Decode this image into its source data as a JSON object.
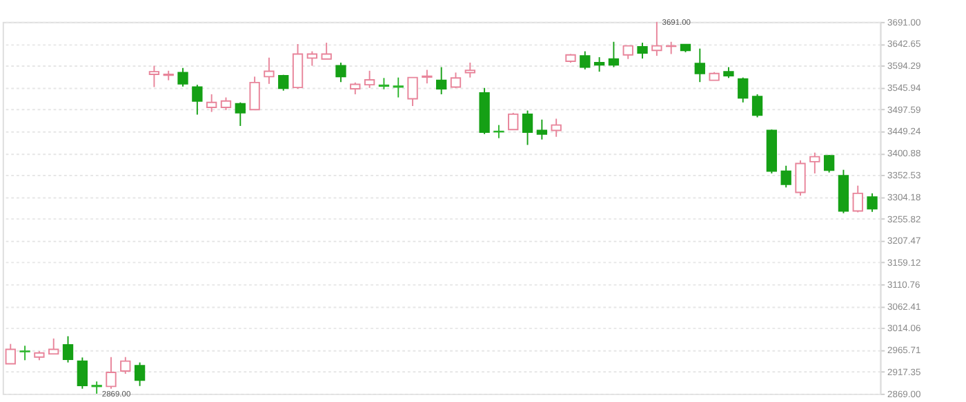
{
  "chart_data": {
    "type": "candlestick",
    "categories": [
      null,
      null,
      null,
      null,
      null,
      null,
      null,
      null,
      null,
      null,
      null,
      null,
      null,
      null,
      null,
      null,
      null,
      null,
      null,
      null,
      null,
      null,
      null,
      null,
      null,
      null,
      null,
      null,
      null,
      null,
      null,
      null,
      null,
      null,
      null,
      null,
      null,
      null,
      null,
      null,
      null,
      null,
      null,
      null,
      null,
      null,
      null,
      null,
      null,
      null,
      null,
      null,
      null,
      null,
      null,
      null,
      null,
      null,
      null,
      null,
      null
    ],
    "ohlc": [
      [
        2935,
        2979,
        2935,
        2967
      ],
      [
        2963,
        2975,
        2943,
        2962
      ],
      [
        2950,
        2963,
        2943,
        2959
      ],
      [
        2957,
        2991,
        2957,
        2967
      ],
      [
        2977,
        2996,
        2938,
        2945
      ],
      [
        2941,
        2949,
        2880,
        2887
      ],
      [
        2887,
        2896,
        2869,
        2885
      ],
      [
        2885,
        2950,
        2880,
        2916
      ],
      [
        2919,
        2950,
        2913,
        2941
      ],
      [
        2931,
        2938,
        2886,
        2899
      ],
      [
        3575,
        3594,
        3547,
        3581
      ],
      [
        3573,
        3583,
        3562,
        3575
      ],
      [
        3579,
        3589,
        3548,
        3554
      ],
      [
        3547,
        3552,
        3486,
        3516
      ],
      [
        3502,
        3531,
        3492,
        3513
      ],
      [
        3502,
        3524,
        3496,
        3516
      ],
      [
        3510,
        3513,
        3461,
        3490
      ],
      [
        3497,
        3570,
        3497,
        3557
      ],
      [
        3570,
        3612,
        3554,
        3582
      ],
      [
        3572,
        3574,
        3539,
        3544
      ],
      [
        3546,
        3642,
        3543,
        3620
      ],
      [
        3611,
        3626,
        3594,
        3620
      ],
      [
        3609,
        3645,
        3609,
        3620
      ],
      [
        3594,
        3601,
        3558,
        3570
      ],
      [
        3543,
        3557,
        3531,
        3553
      ],
      [
        3552,
        3583,
        3545,
        3563
      ],
      [
        3551,
        3567,
        3542,
        3549
      ],
      [
        3549,
        3568,
        3524,
        3547
      ],
      [
        3521,
        3568,
        3505,
        3568
      ],
      [
        3569,
        3585,
        3555,
        3571
      ],
      [
        3562,
        3591,
        3531,
        3543
      ],
      [
        3547,
        3579,
        3545,
        3567
      ],
      [
        3579,
        3601,
        3568,
        3584
      ],
      [
        3534,
        3545,
        3443,
        3447
      ],
      [
        3449,
        3463,
        3434,
        3448
      ],
      [
        3453,
        3490,
        3453,
        3487
      ],
      [
        3487,
        3495,
        3419,
        3447
      ],
      [
        3451,
        3475,
        3431,
        3443
      ],
      [
        3451,
        3477,
        3437,
        3463
      ],
      [
        3604,
        3620,
        3601,
        3618
      ],
      [
        3616,
        3626,
        3586,
        3591
      ],
      [
        3601,
        3613,
        3581,
        3596
      ],
      [
        3609,
        3647,
        3591,
        3596
      ],
      [
        3618,
        3639,
        3609,
        3638
      ],
      [
        3636,
        3645,
        3610,
        3622
      ],
      [
        3628,
        3691,
        3616,
        3638
      ],
      [
        3637,
        3647,
        3620,
        3638
      ],
      [
        3641,
        3641,
        3624,
        3628
      ],
      [
        3599,
        3632,
        3558,
        3577
      ],
      [
        3562,
        3580,
        3562,
        3577
      ],
      [
        3581,
        3591,
        3567,
        3572
      ],
      [
        3565,
        3568,
        3513,
        3523
      ],
      [
        3526,
        3531,
        3480,
        3485
      ],
      [
        3451,
        3453,
        3356,
        3361
      ],
      [
        3361,
        3373,
        3325,
        3332
      ],
      [
        3314,
        3385,
        3307,
        3378
      ],
      [
        3382,
        3402,
        3356,
        3393
      ],
      [
        3395,
        3397,
        3358,
        3363
      ],
      [
        3351,
        3364,
        3268,
        3273
      ],
      [
        3273,
        3329,
        3270,
        3312
      ],
      [
        3304,
        3312,
        3271,
        3278
      ]
    ],
    "colors": [
      "#e8849a",
      "#2cb52c",
      "#e8849a",
      "#e8849a",
      "#15a015",
      "#15a015",
      "#2cb52c",
      "#e8849a",
      "#e8849a",
      "#15a015",
      "#e8849a",
      "#e8849a",
      "#15a015",
      "#15a015",
      "#e8849a",
      "#e8849a",
      "#15a015",
      "#e8849a",
      "#e8849a",
      "#15a015",
      "#e8849a",
      "#e8849a",
      "#e8849a",
      "#15a015",
      "#e8849a",
      "#e8849a",
      "#2cb52c",
      "#2cb52c",
      "#e8849a",
      "#e8849a",
      "#15a015",
      "#e8849a",
      "#e8849a",
      "#15a015",
      "#2cb52c",
      "#e8849a",
      "#15a015",
      "#15a015",
      "#e8849a",
      "#e8849a",
      "#15a015",
      "#15a015",
      "#15a015",
      "#e8849a",
      "#15a015",
      "#e8849a",
      "#e8849a",
      "#15a015",
      "#15a015",
      "#e8849a",
      "#15a015",
      "#15a015",
      "#15a015",
      "#15a015",
      "#15a015",
      "#e8849a",
      "#e8849a",
      "#15a015",
      "#15a015",
      "#e8849a",
      "#15a015"
    ],
    "ylim": [
      2869,
      3691
    ],
    "yticks": [
      {
        "value": 2869,
        "label": "2869.00"
      },
      2917.35,
      2965.71,
      3014.06,
      3062.41,
      3110.76,
      3159.12,
      3207.47,
      3255.82,
      3304.18,
      3352.53,
      3400.88,
      3449.24,
      3497.59,
      3545.94,
      3594.29,
      3642.65,
      {
        "value": 3691,
        "label": "3691.00"
      }
    ],
    "tick_labels": "y",
    "grid": "y",
    "annotations": [
      "3691.00",
      "2869.00"
    ]
  }
}
